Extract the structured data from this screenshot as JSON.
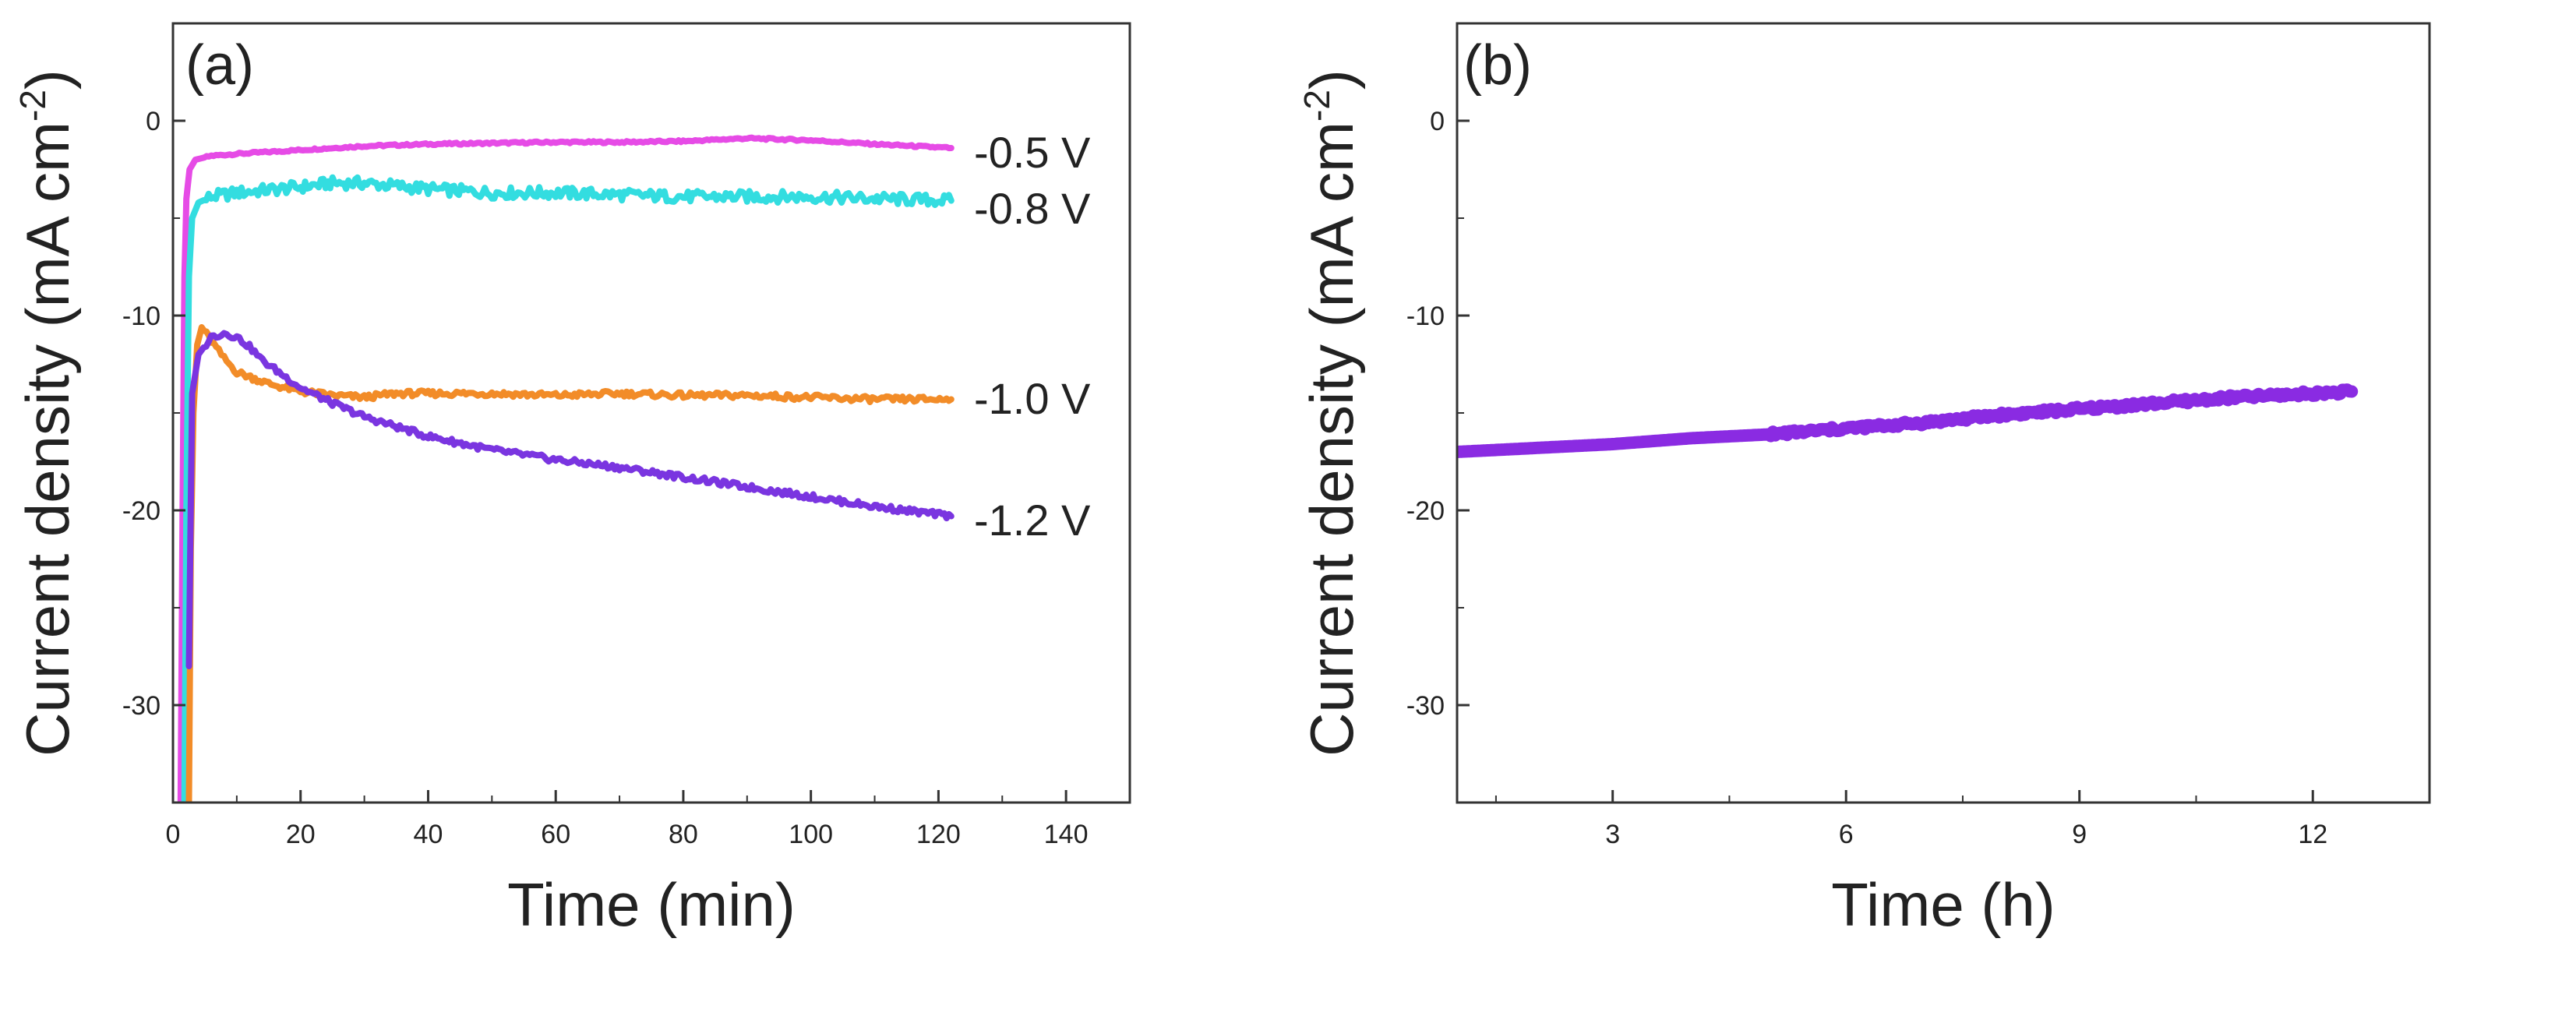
{
  "chart_data": [
    {
      "type": "line",
      "panel": "(a)",
      "xlabel": "Time (min)",
      "ylabel_main": "Current density (mA cm",
      "ylabel_sup": "-2",
      "ylabel_end": ")",
      "xlim": [
        0,
        150
      ],
      "ylim": [
        -35,
        5
      ],
      "xticks": [
        0,
        20,
        40,
        60,
        80,
        100,
        120,
        140
      ],
      "yticks": [
        0,
        -10,
        -20,
        -30
      ],
      "xtick_labels": [
        "0",
        "20",
        "40",
        "60",
        "80",
        "100",
        "120",
        "140"
      ],
      "ytick_labels": [
        "0",
        "-10",
        "-20",
        "-30"
      ],
      "series": [
        {
          "name": "-0.5 V",
          "color": "#e64be6",
          "noise": 0.05,
          "points": [
            [
              1.2,
              -35
            ],
            [
              1.5,
              -20
            ],
            [
              1.8,
              -8
            ],
            [
              2.1,
              -4
            ],
            [
              2.6,
              -2.5
            ],
            [
              3.5,
              -2.0
            ],
            [
              6,
              -1.8
            ],
            [
              10,
              -1.7
            ],
            [
              20,
              -1.5
            ],
            [
              30,
              -1.3
            ],
            [
              40,
              -1.2
            ],
            [
              50,
              -1.15
            ],
            [
              60,
              -1.1
            ],
            [
              70,
              -1.1
            ],
            [
              80,
              -1.05
            ],
            [
              90,
              -0.9
            ],
            [
              100,
              -1.0
            ],
            [
              110,
              -1.2
            ],
            [
              122,
              -1.4
            ]
          ]
        },
        {
          "name": "-0.8 V",
          "color": "#33dde0",
          "noise": 0.3,
          "points": [
            [
              1.8,
              -35
            ],
            [
              2.1,
              -20
            ],
            [
              2.5,
              -8
            ],
            [
              3,
              -5
            ],
            [
              4,
              -4.2
            ],
            [
              6,
              -3.9
            ],
            [
              10,
              -3.7
            ],
            [
              20,
              -3.4
            ],
            [
              25,
              -3.2
            ],
            [
              30,
              -3.2
            ],
            [
              40,
              -3.5
            ],
            [
              50,
              -3.7
            ],
            [
              60,
              -3.7
            ],
            [
              70,
              -3.8
            ],
            [
              80,
              -3.9
            ],
            [
              90,
              -3.9
            ],
            [
              100,
              -3.9
            ],
            [
              110,
              -4.0
            ],
            [
              122,
              -4.1
            ]
          ]
        },
        {
          "name": "-1.0 V",
          "color": "#f28c28",
          "noise": 0.15,
          "points": [
            [
              2.5,
              -35
            ],
            [
              2.8,
              -22
            ],
            [
              3.2,
              -15
            ],
            [
              3.8,
              -11.5
            ],
            [
              4.5,
              -10.6
            ],
            [
              6,
              -11.3
            ],
            [
              8,
              -12.2
            ],
            [
              10,
              -12.9
            ],
            [
              15,
              -13.5
            ],
            [
              20,
              -13.9
            ],
            [
              25,
              -14.1
            ],
            [
              30,
              -14.2
            ],
            [
              35,
              -14.0
            ],
            [
              40,
              -14.0
            ],
            [
              50,
              -14.0
            ],
            [
              60,
              -14.1
            ],
            [
              70,
              -14.0
            ],
            [
              80,
              -14.1
            ],
            [
              90,
              -14.1
            ],
            [
              100,
              -14.2
            ],
            [
              110,
              -14.3
            ],
            [
              122,
              -14.3
            ]
          ]
        },
        {
          "name": "-1.2 V",
          "color": "#7a35e0",
          "noise": 0.15,
          "points": [
            [
              2.5,
              -28
            ],
            [
              3,
              -14
            ],
            [
              4,
              -12
            ],
            [
              6,
              -11.1
            ],
            [
              8,
              -10.9
            ],
            [
              10,
              -11.1
            ],
            [
              12,
              -11.6
            ],
            [
              14,
              -12.3
            ],
            [
              17,
              -13.0
            ],
            [
              20,
              -13.7
            ],
            [
              25,
              -14.5
            ],
            [
              30,
              -15.2
            ],
            [
              40,
              -16.2
            ],
            [
              50,
              -16.9
            ],
            [
              60,
              -17.4
            ],
            [
              70,
              -17.8
            ],
            [
              80,
              -18.3
            ],
            [
              90,
              -18.8
            ],
            [
              100,
              -19.3
            ],
            [
              110,
              -19.8
            ],
            [
              122,
              -20.3
            ]
          ]
        }
      ]
    },
    {
      "type": "line",
      "panel": "(b)",
      "xlabel": "Time (h)",
      "ylabel_main": "Current density (mA cm",
      "ylabel_sup": "-2",
      "ylabel_end": ")",
      "xlim": [
        1,
        13.5
      ],
      "ylim": [
        -35,
        5
      ],
      "xticks": [
        3,
        6,
        9,
        12
      ],
      "yticks": [
        0,
        -10,
        -20,
        -30
      ],
      "xtick_labels": [
        "3",
        "6",
        "9",
        "12"
      ],
      "ytick_labels": [
        "0",
        "-10",
        "-20",
        "-30"
      ],
      "series": [
        {
          "name": "",
          "color": "#8a2be2",
          "noise": 0.12,
          "points": [
            [
              1.0,
              -17.0
            ],
            [
              2.0,
              -16.8
            ],
            [
              3.0,
              -16.6
            ],
            [
              4.0,
              -16.3
            ],
            [
              5.0,
              -16.1
            ],
            [
              6.0,
              -15.8
            ],
            [
              7.0,
              -15.5
            ],
            [
              8.0,
              -15.1
            ],
            [
              9.0,
              -14.8
            ],
            [
              10.0,
              -14.5
            ],
            [
              11.0,
              -14.2
            ],
            [
              12.0,
              -14.0
            ],
            [
              12.5,
              -13.9
            ]
          ]
        }
      ]
    }
  ]
}
